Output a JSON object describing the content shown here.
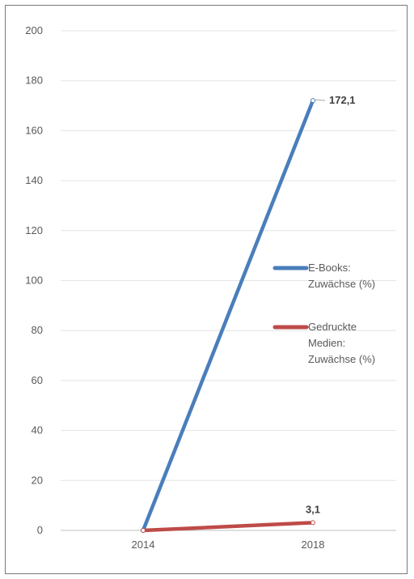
{
  "chart_data": {
    "type": "line",
    "categories": [
      "2014",
      "2018"
    ],
    "series": [
      {
        "name": "E-Books: Zuwächse (%)",
        "legend_lines": [
          "E-Books:",
          "Zuwächse (%)"
        ],
        "values": [
          0,
          172.1
        ],
        "data_labels": [
          "",
          "172,1"
        ],
        "color": "#4a7ebb"
      },
      {
        "name": "Gedruckte Medien: Zuwächse (%)",
        "legend_lines": [
          "Gedruckte",
          "Medien:",
          "Zuwächse (%)"
        ],
        "values": [
          0,
          3.1
        ],
        "data_labels": [
          "",
          "3,1"
        ],
        "color": "#be4b48"
      }
    ],
    "yticks": [
      "0",
      "20",
      "40",
      "60",
      "80",
      "100",
      "120",
      "140",
      "160",
      "180",
      "200"
    ],
    "ylim": [
      0,
      200
    ],
    "grid": true,
    "legend_position": "right",
    "title": "",
    "xlabel": "",
    "ylabel": ""
  }
}
